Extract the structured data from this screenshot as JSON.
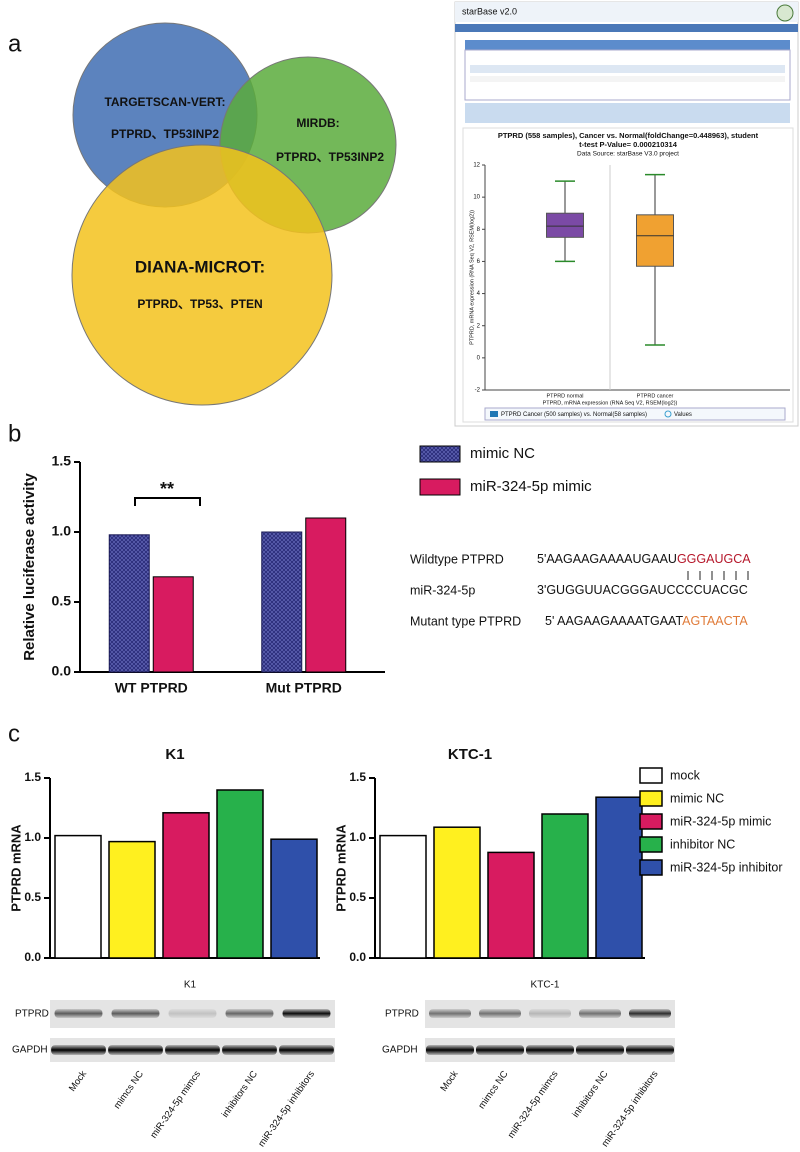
{
  "panels": [
    "a",
    "b",
    "c"
  ],
  "venn": {
    "sets": [
      {
        "name": "TARGETSCAN-VERT:",
        "genes": "PTPRD、TP53INP2",
        "color": "#3f6db3"
      },
      {
        "name": "MIRDB:",
        "genes": "PTPRD、TP53INP2",
        "color": "#5aac3c"
      },
      {
        "name": "DIANA-MICROT:",
        "genes": "PTPRD、TP53、PTEN",
        "color": "#f3c21c"
      }
    ]
  },
  "screenshot": {
    "brand": "starBase v2.0"
  },
  "sequences": [
    {
      "label": "Wildtype PTPRD",
      "prefix": "5'AAGAAGAAAAUGAAU",
      "site": "GGGAUGCA",
      "color": "#b5172a"
    },
    {
      "label": "miR-324-5p",
      "prefix": "3'GUGGUUACGGGAUCCCCUACGC"
    },
    {
      "label": "Mutant type PTPRD",
      "prefix": "5' AAGAAGAAAATGAAT",
      "site": "AGTAACTA",
      "color": "#e07b39"
    }
  ],
  "legend": [
    {
      "name": "mock",
      "color": "#ffffff"
    },
    {
      "name": "mimic NC",
      "color": "#fff01f"
    },
    {
      "name": "miR-324-5p mimic",
      "color": "#d81b60"
    },
    {
      "name": "inhibitor NC",
      "color": "#27b14b"
    },
    {
      "name": "miR-324-5p inhibitor",
      "color": "#2f50aa"
    }
  ],
  "blots": [
    {
      "title": "K1",
      "rows": [
        "PTPRD",
        "GAPDH"
      ],
      "lanes": [
        "Mock",
        "mimcs NC",
        "miR-324-5p mimcs",
        "inhibitors NC",
        "miR-324-5p inhibitors"
      ]
    },
    {
      "title": "KTC-1",
      "rows": [
        "PTPRD",
        "GAPDH"
      ],
      "lanes": [
        "Mock",
        "mimcs NC",
        "miR-324-5p mimcs",
        "inhibitors NC",
        "miR-324-5p inhibitors"
      ]
    }
  ],
  "chart_data": [
    {
      "type": "box",
      "title": "PTPRD (558 samples), Cancer vs. Normal(foldChange=0.448963), student",
      "subtitle": "t-test P-Value= 0.000210314",
      "source": "Data Source: starBase V3.0 project",
      "y_label": "PTPRD, mRNA expression (RNA Seq V2, RSEM(log2))",
      "x_label": "PTPRD, mRNA expression (RNA Seq V2, RSEM(log2))",
      "categories": [
        "PTPRD normal",
        "PTPRD cancer"
      ],
      "series": [
        {
          "color": "#7b4aa5",
          "whisker_low": 6,
          "q1": 7.5,
          "median": 8.2,
          "q3": 9,
          "whisker_high": 11
        },
        {
          "color": "#f0a131",
          "whisker_low": 0.8,
          "q1": 5.7,
          "median": 7.6,
          "q3": 8.9,
          "whisker_high": 11.4
        }
      ],
      "legend": [
        "PTPRD Cancer (500 samples) vs. Normal(58 samples)",
        "Values"
      ],
      "ylim": [
        -2,
        12
      ],
      "yticks": [
        -2,
        0,
        2,
        4,
        6,
        8,
        10,
        12
      ]
    },
    {
      "type": "bar",
      "y_label": "Relative luciferase activity",
      "categories": [
        "WT PTPRD",
        "Mut PTPRD"
      ],
      "series": [
        {
          "name": "mimic NC",
          "color": "#2b2d7a",
          "values": [
            0.98,
            1.0
          ]
        },
        {
          "name": "miR-324-5p mimic",
          "color": "#d81b60",
          "values": [
            0.68,
            1.1
          ]
        }
      ],
      "annotation": "**",
      "ylim": [
        0,
        1.5
      ],
      "yticks": [
        {
          "value": 0,
          "label": "0.0"
        },
        {
          "value": 0.5,
          "label": "0.5"
        },
        {
          "value": 1,
          "label": "1.0"
        },
        {
          "value": 1.5,
          "label": "1.5"
        }
      ]
    },
    {
      "type": "bar",
      "title": "K1",
      "y_label": "PTPRD mRNA",
      "values": [
        1.02,
        0.97,
        1.21,
        1.4,
        0.99
      ],
      "ylim": [
        0,
        1.5
      ],
      "yticks": [
        {
          "value": 0,
          "label": "0.0"
        },
        {
          "value": 0.5,
          "label": "0.5"
        },
        {
          "value": 1,
          "label": "1.0"
        },
        {
          "value": 1.5,
          "label": "1.5"
        }
      ]
    },
    {
      "type": "bar",
      "title": "KTC-1",
      "y_label": "PTPRD mRNA",
      "values": [
        1.02,
        1.09,
        0.88,
        1.2,
        1.34
      ],
      "ylim": [
        0,
        1.5
      ],
      "yticks": [
        {
          "value": 0,
          "label": "0.0"
        },
        {
          "value": 0.5,
          "label": "0.5"
        },
        {
          "value": 1,
          "label": "1.0"
        },
        {
          "value": 1.5,
          "label": "1.5"
        }
      ]
    }
  ]
}
